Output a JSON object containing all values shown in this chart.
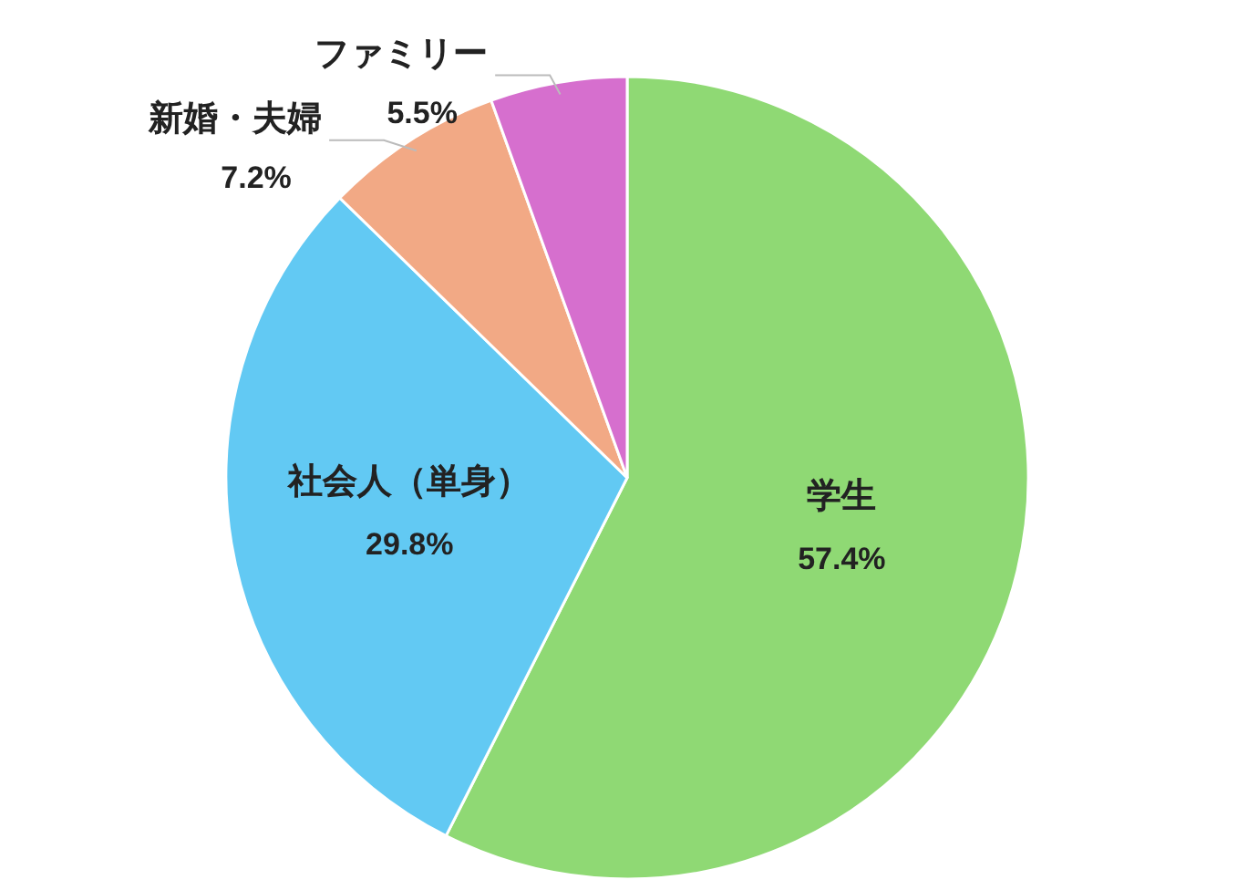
{
  "chart_data": {
    "type": "pie",
    "categories": [
      "学生",
      "社会人（単身）",
      "新婚・夫婦",
      "ファミリー"
    ],
    "values": [
      57.4,
      29.8,
      7.2,
      5.5
    ],
    "colors": [
      "#8fd974",
      "#62c9f3",
      "#f2a985",
      "#d66fce"
    ],
    "value_labels": [
      "57.4%",
      "29.8%",
      "7.2%",
      "5.5%"
    ]
  }
}
